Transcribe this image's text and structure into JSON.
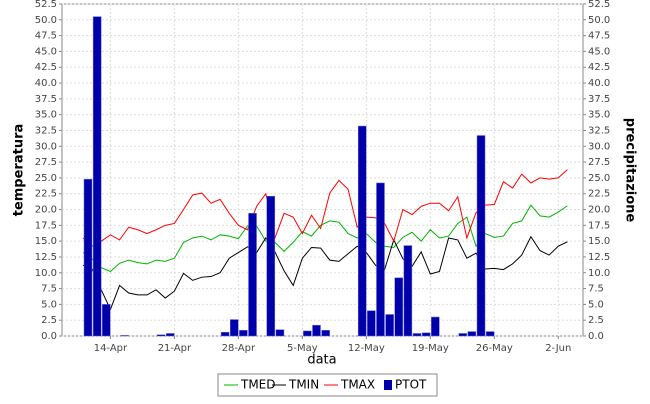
{
  "chart_data": {
    "type": "line",
    "x_label": "data",
    "y_label": "temperatura",
    "y2_label": "precipitazione",
    "categories": [
      null,
      null,
      null,
      "14-Apr",
      null,
      null,
      null,
      null,
      null,
      null,
      "21-Apr",
      null,
      null,
      null,
      null,
      null,
      null,
      "28-Apr",
      null,
      null,
      null,
      null,
      null,
      null,
      "5-May",
      null,
      null,
      null,
      null,
      null,
      null,
      "12-May",
      null,
      null,
      null,
      null,
      null,
      null,
      "19-May",
      null,
      null,
      null,
      null,
      null,
      null,
      "26-May",
      null,
      null,
      null,
      null,
      null,
      null,
      "2-Jun",
      null
    ],
    "series": [
      {
        "name": "TMED",
        "color": "#00b400",
        "values": [
          13.2,
          12.2,
          10.8,
          10.2,
          11.5,
          12,
          11.6,
          11.4,
          12,
          11.8,
          12.3,
          14.8,
          15.5,
          15.8,
          15.2,
          16,
          15.8,
          15.4,
          17.4,
          17.4,
          15,
          14.8,
          13.4,
          14.8,
          16.5,
          15.8,
          17.5,
          18.2,
          18,
          16.2,
          15.5,
          16.2,
          14.8,
          14.2,
          14,
          15.6,
          16.4,
          15,
          16.8,
          15.5,
          15.8,
          17.8,
          18.8,
          14.2,
          16.2,
          15.6,
          15.8,
          17.8,
          18.2,
          20.7,
          19,
          18.8,
          19.6,
          20.6
        ]
      },
      {
        "name": "TMIN",
        "color": "#000000",
        "values": [
          11.2,
          10.6,
          7.3,
          4.2,
          8,
          6.8,
          6.5,
          6.5,
          7.3,
          6,
          7.1,
          9.9,
          8.8,
          9.3,
          9.4,
          10,
          12.3,
          13.2,
          14.1,
          13.2,
          15.5,
          13.3,
          10.3,
          8,
          12.3,
          14,
          13.9,
          12,
          11.8,
          13,
          14.2,
          13.2,
          11.2,
          10.5,
          15.2,
          12.2,
          11,
          13.3,
          9.8,
          10.2,
          15.5,
          15.2,
          12.3,
          13.1,
          10.6,
          10.7,
          10.5,
          11.4,
          12.8,
          15.7,
          13.5,
          12.8,
          14.2,
          14.9
        ]
      },
      {
        "name": "TMAX",
        "color": "#ff0000",
        "values": [
          15.5,
          14.2,
          15,
          16,
          15.2,
          17.2,
          16.8,
          16.2,
          16.8,
          17.5,
          17.8,
          20,
          22.3,
          22.6,
          21,
          21.6,
          19.4,
          17.5,
          16.8,
          20.5,
          22.5,
          15.5,
          19.4,
          18.8,
          16.2,
          19.1,
          17,
          22.6,
          24.6,
          23.2,
          17.2,
          18.8,
          18.7,
          17.8,
          15,
          20,
          19.2,
          20.5,
          21,
          21,
          19.8,
          22,
          15.5,
          19.5,
          20.7,
          20.8,
          24.4,
          23.4,
          25.6,
          24.2,
          25,
          24.8,
          25,
          26.3
        ]
      },
      {
        "name": "PTOT",
        "color": "#0000aa",
        "type": "bar",
        "axis": "y2",
        "values": [
          24.8,
          50.5,
          5,
          0,
          0.1,
          0,
          0,
          0,
          0.2,
          0.4,
          0,
          0,
          0,
          0,
          0,
          0.6,
          2.6,
          0.9,
          19.4,
          0,
          22.1,
          1,
          0,
          0,
          0.8,
          1.7,
          0.9,
          0,
          0,
          0,
          33.2,
          4,
          24.2,
          3.4,
          9.2,
          14.3,
          0.4,
          0.5,
          3,
          0,
          0,
          0.4,
          0.7,
          31.7,
          0.7,
          0,
          0,
          0,
          0,
          0,
          0,
          0,
          0,
          0
        ]
      }
    ],
    "ylim": [
      0,
      52.5
    ],
    "y2lim": [
      0,
      52.5
    ],
    "yticks": [
      {
        "value": 0,
        "label": "0.0"
      },
      {
        "value": 2.5,
        "label": "2.5"
      },
      {
        "value": 5,
        "label": "5.0"
      },
      {
        "value": 7.5,
        "label": "7.5"
      },
      {
        "value": 10,
        "label": "10.0"
      },
      {
        "value": 12.5,
        "label": "12.5"
      },
      {
        "value": 15,
        "label": "15.0"
      },
      {
        "value": 17.5,
        "label": "17.5"
      },
      {
        "value": 20,
        "label": "20.0"
      },
      {
        "value": 22.5,
        "label": "22.5"
      },
      {
        "value": 25,
        "label": "25.0"
      },
      {
        "value": 27.5,
        "label": "27.5"
      },
      {
        "value": 30,
        "label": "30.0"
      },
      {
        "value": 32.5,
        "label": "32.5"
      },
      {
        "value": 35,
        "label": "35.0"
      },
      {
        "value": 37.5,
        "label": "37.5"
      },
      {
        "value": 40,
        "label": "40.0"
      },
      {
        "value": 42.5,
        "label": "42.5"
      },
      {
        "value": 45,
        "label": "45.0"
      },
      {
        "value": 47.5,
        "label": "47.5"
      },
      {
        "value": 50,
        "label": "50.0"
      },
      {
        "value": 52.5,
        "label": "52.5"
      }
    ],
    "y2ticks": [
      {
        "value": 0,
        "label": "0.0"
      },
      {
        "value": 2.5,
        "label": "2.5"
      },
      {
        "value": 5,
        "label": "5.0"
      },
      {
        "value": 7.5,
        "label": "7.5"
      },
      {
        "value": 10,
        "label": "10.0"
      },
      {
        "value": 12.5,
        "label": "12.5"
      },
      {
        "value": 15,
        "label": "15.0"
      },
      {
        "value": 17.5,
        "label": "17.5"
      },
      {
        "value": 20,
        "label": "20.0"
      },
      {
        "value": 22.5,
        "label": "22.5"
      },
      {
        "value": 25,
        "label": "25.0"
      },
      {
        "value": 27.5,
        "label": "27.5"
      },
      {
        "value": 30,
        "label": "30.0"
      },
      {
        "value": 32.5,
        "label": "32.5"
      },
      {
        "value": 35,
        "label": "35.0"
      },
      {
        "value": 37.5,
        "label": "37.5"
      },
      {
        "value": 40,
        "label": "40.0"
      },
      {
        "value": 42.5,
        "label": "42.5"
      },
      {
        "value": 45,
        "label": "45.0"
      },
      {
        "value": 47.5,
        "label": "47.5"
      },
      {
        "value": 50,
        "label": "50.0"
      },
      {
        "value": 52.5,
        "label": "52.5"
      }
    ],
    "grid": true,
    "legend": "bottom"
  }
}
